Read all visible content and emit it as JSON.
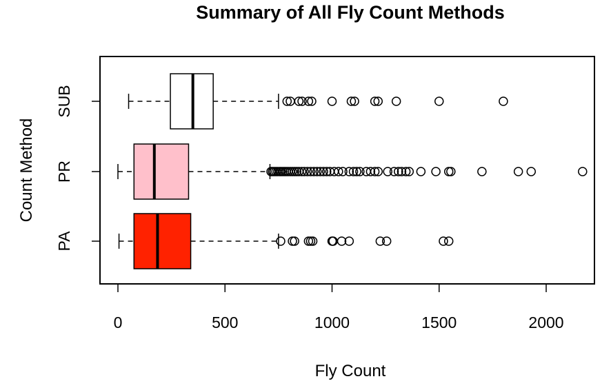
{
  "chart_data": {
    "type": "boxplot",
    "orientation": "horizontal",
    "title": "Summary of All Fly Count Methods",
    "xlabel": "Fly Count",
    "ylabel": "Count Method",
    "xlim": [
      -40,
      2190
    ],
    "xticks": [
      0,
      500,
      1000,
      1500,
      2000
    ],
    "xtick_labels": [
      "0",
      "500",
      "1000",
      "1500",
      "2000"
    ],
    "grid": false,
    "legend": "none",
    "categories": [
      "PA",
      "PR",
      "SUB"
    ],
    "series": [
      {
        "category": "PA",
        "color": "#ff2200",
        "whisker_low": 5,
        "q1": 75,
        "median": 185,
        "q3": 340,
        "whisker_high": 750,
        "outliers": [
          760,
          815,
          825,
          890,
          900,
          910,
          1000,
          1005,
          1045,
          1080,
          1225,
          1255,
          1520,
          1545
        ]
      },
      {
        "category": "PR",
        "color": "#ffc0cb",
        "whisker_low": 0,
        "q1": 75,
        "median": 170,
        "q3": 330,
        "whisker_high": 710,
        "outliers": [
          715,
          722,
          730,
          738,
          746,
          755,
          762,
          770,
          778,
          786,
          795,
          805,
          815,
          825,
          835,
          845,
          858,
          870,
          885,
          900,
          915,
          930,
          945,
          960,
          975,
          990,
          1010,
          1030,
          1050,
          1080,
          1100,
          1115,
          1130,
          1160,
          1180,
          1200,
          1215,
          1260,
          1290,
          1310,
          1325,
          1345,
          1360,
          1415,
          1485,
          1545,
          1555,
          1700,
          1870,
          1930,
          2170
        ]
      },
      {
        "category": "SUB",
        "color": "#ffffff",
        "whisker_low": 50,
        "q1": 245,
        "median": 350,
        "q3": 445,
        "whisker_high": 750,
        "outliers": [
          790,
          805,
          845,
          860,
          890,
          905,
          1000,
          1090,
          1105,
          1200,
          1215,
          1300,
          1500,
          1800
        ]
      }
    ]
  }
}
